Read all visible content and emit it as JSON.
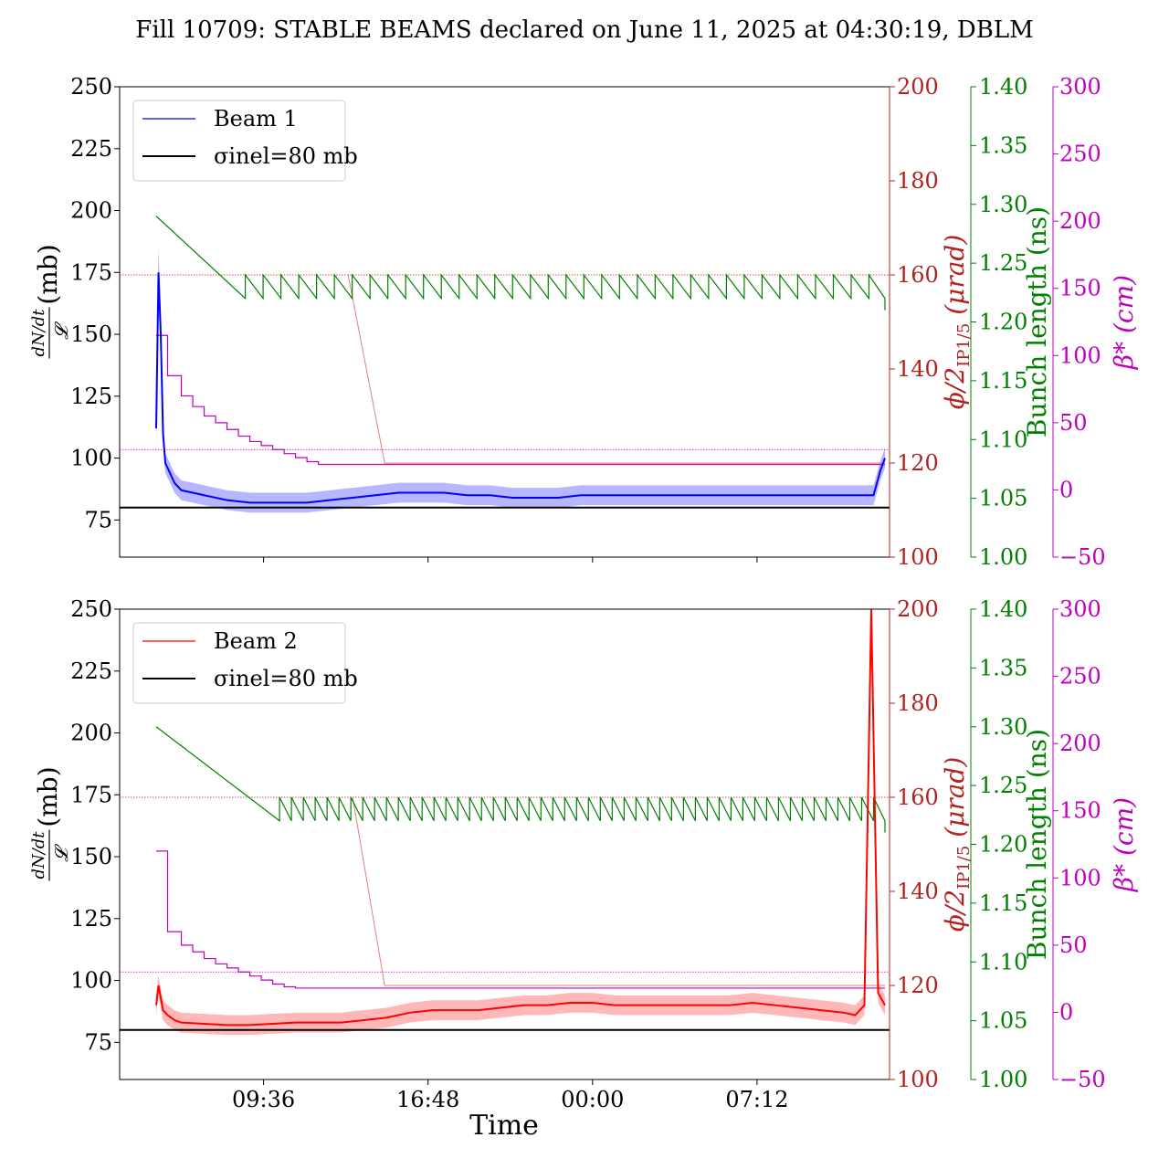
{
  "title": "Fill 10709: STABLE BEAMS declared on June 11, 2025 at 04:30:19, DBLM",
  "colors": {
    "beam1": "#0000ff",
    "beam1_band": "#aaaaff",
    "beam2": "#ff0000",
    "beam2_band": "#ffaaaa",
    "crossing": "#b22222",
    "bunch": "#008000",
    "beta": "#bf00bf",
    "ref": "#000000"
  },
  "axis_labels": {
    "y_left": "dN/dt / 𝓛 (mb)",
    "y_left_num": "dN/dt",
    "y_left_den": "𝓛",
    "y_left_unit": "(mb)",
    "y_crossing": "ϕ/2IP1/5 (μrad)",
    "y_crossing_main": "ϕ/2",
    "y_crossing_sub": "IP1/5",
    "y_crossing_unit": "(μrad)",
    "y_bunch": "Bunch length (ns)",
    "y_beta": "β* (cm)",
    "x": "Time"
  },
  "chart_data": [
    {
      "type": "line",
      "panel": "top",
      "x_tick_labels": [
        "09:36",
        "16:48",
        "00:00",
        "07:12"
      ],
      "x_tick_hours": [
        9.6,
        16.8,
        24.0,
        31.2
      ],
      "xlim_hours": [
        3.3,
        37.0
      ],
      "ylim_left": [
        60,
        250
      ],
      "yticks_left": [
        75,
        100,
        125,
        150,
        175,
        200,
        225,
        250
      ],
      "ylim_crossing": [
        100,
        200
      ],
      "yticks_crossing": [
        100,
        120,
        140,
        160,
        180,
        200
      ],
      "ylim_bunch": [
        1.0,
        1.4
      ],
      "yticks_bunch": [
        "1.00",
        "1.05",
        "1.10",
        "1.15",
        "1.20",
        "1.25",
        "1.30",
        "1.35",
        "1.40"
      ],
      "ylim_beta": [
        -50,
        300
      ],
      "yticks_beta": [
        "−50",
        "0",
        "50",
        "100",
        "150",
        "200",
        "250",
        "300"
      ],
      "legend": {
        "position": "top-left",
        "entries": [
          "Beam 1",
          "σinel=80 mb"
        ]
      },
      "reference_line_mb": 80,
      "crossing_dotted_urad": 160,
      "beta_dotted_cm": 30,
      "series": [
        {
          "name": "Beam 1",
          "axis": "left",
          "x": [
            4.9,
            5.0,
            5.1,
            5.2,
            5.3,
            5.5,
            5.7,
            6.0,
            6.5,
            7.0,
            7.5,
            8.0,
            8.5,
            9.0,
            9.6,
            10.5,
            11.5,
            12.5,
            13.5,
            14.5,
            15.5,
            16.5,
            17.5,
            18.5,
            19.5,
            20.5,
            21.5,
            22.5,
            23.5,
            24.5,
            25.5,
            26.5,
            27.5,
            28.5,
            29.5,
            30.5,
            31.5,
            32.5,
            33.5,
            34.5,
            35.5,
            36.0,
            36.3,
            36.6,
            36.8
          ],
          "y": [
            112,
            175,
            150,
            110,
            98,
            94,
            90,
            87,
            86,
            85,
            84,
            83,
            82.5,
            82,
            82,
            82,
            82,
            83,
            84,
            85,
            86,
            86,
            86,
            85,
            85,
            84,
            84,
            84,
            85,
            85,
            85,
            85,
            85,
            85,
            85,
            85,
            85,
            85,
            85,
            85,
            85,
            85,
            85,
            95,
            100
          ]
        },
        {
          "name": "ϕ/2 IP1/5",
          "axis": "crossing",
          "x": [
            13.3,
            14.9,
            14.9,
            36.8
          ],
          "y": [
            160,
            120,
            120,
            120
          ]
        },
        {
          "name": "Bunch length",
          "axis": "bunch",
          "x": [
            4.9,
            8.8,
            36.8
          ],
          "y": [
            1.29,
            1.22,
            1.21
          ],
          "sawtooth": {
            "start_hours": 8.8,
            "period_hours": 0.78,
            "high": 1.24,
            "low": 1.22
          }
        },
        {
          "name": "β*",
          "axis": "beta",
          "x": [
            4.9,
            5.4,
            6.0,
            6.5,
            7.0,
            7.5,
            8.0,
            8.5,
            9.0,
            9.5,
            10.0,
            10.5,
            11.0,
            11.5,
            12.0,
            36.8
          ],
          "y": [
            115,
            85,
            70,
            62,
            55,
            50,
            45,
            40,
            36,
            33,
            30,
            27,
            24,
            21,
            19,
            19
          ]
        }
      ]
    },
    {
      "type": "line",
      "panel": "bottom",
      "x_tick_labels": [
        "09:36",
        "16:48",
        "00:00",
        "07:12"
      ],
      "x_tick_hours": [
        9.6,
        16.8,
        24.0,
        31.2
      ],
      "xlim_hours": [
        3.3,
        37.0
      ],
      "ylim_left": [
        60,
        250
      ],
      "yticks_left": [
        75,
        100,
        125,
        150,
        175,
        200,
        225,
        250
      ],
      "ylim_crossing": [
        100,
        200
      ],
      "yticks_crossing": [
        100,
        120,
        140,
        160,
        180,
        200
      ],
      "ylim_bunch": [
        1.0,
        1.4
      ],
      "yticks_bunch": [
        "1.00",
        "1.05",
        "1.10",
        "1.15",
        "1.20",
        "1.25",
        "1.30",
        "1.35",
        "1.40"
      ],
      "ylim_beta": [
        -50,
        300
      ],
      "yticks_beta": [
        "−50",
        "0",
        "50",
        "100",
        "150",
        "200",
        "250",
        "300"
      ],
      "legend": {
        "position": "top-left",
        "entries": [
          "Beam 2",
          "σinel=80 mb"
        ]
      },
      "reference_line_mb": 80,
      "crossing_dotted_urad": 160,
      "beta_dotted_cm": 30,
      "series": [
        {
          "name": "Beam 2",
          "axis": "left",
          "x": [
            4.9,
            5.0,
            5.2,
            5.4,
            5.7,
            6.0,
            7.0,
            8.0,
            9.0,
            10.0,
            11.0,
            12.0,
            13.0,
            14.0,
            15.0,
            16.0,
            17.0,
            18.0,
            19.0,
            20.0,
            21.0,
            22.0,
            23.0,
            24.0,
            25.0,
            26.0,
            27.0,
            28.0,
            29.0,
            30.0,
            31.0,
            32.0,
            33.0,
            34.0,
            35.0,
            35.5,
            35.9,
            36.2,
            36.5,
            36.8
          ],
          "y": [
            90,
            98,
            88,
            86,
            84,
            83,
            82.5,
            82,
            82,
            82.5,
            83,
            83,
            83,
            84,
            85,
            87,
            88,
            88,
            88,
            89,
            90,
            90,
            91,
            91,
            90,
            90,
            90,
            90,
            90,
            90,
            91,
            90,
            89,
            88,
            87,
            86,
            90,
            250,
            95,
            90
          ]
        },
        {
          "name": "ϕ/2 IP1/5",
          "axis": "crossing",
          "x": [
            13.5,
            14.9,
            14.9,
            36.8
          ],
          "y": [
            160,
            120,
            120,
            120
          ]
        },
        {
          "name": "Bunch length",
          "axis": "bunch",
          "x": [
            4.9,
            10.3,
            36.8
          ],
          "y": [
            1.3,
            1.22,
            1.21
          ],
          "sawtooth": {
            "start_hours": 10.3,
            "period_hours": 0.52,
            "high": 1.24,
            "low": 1.22
          }
        },
        {
          "name": "β*",
          "axis": "beta",
          "x": [
            4.9,
            5.3,
            5.4,
            6.0,
            6.5,
            7.0,
            7.5,
            8.0,
            8.5,
            9.0,
            9.5,
            10.0,
            10.5,
            11.0,
            11.5,
            12.0,
            36.8
          ],
          "y": [
            120,
            120,
            60,
            50,
            45,
            40,
            36,
            33,
            30,
            27,
            24,
            21,
            19,
            18,
            18,
            18,
            18
          ]
        }
      ]
    }
  ]
}
